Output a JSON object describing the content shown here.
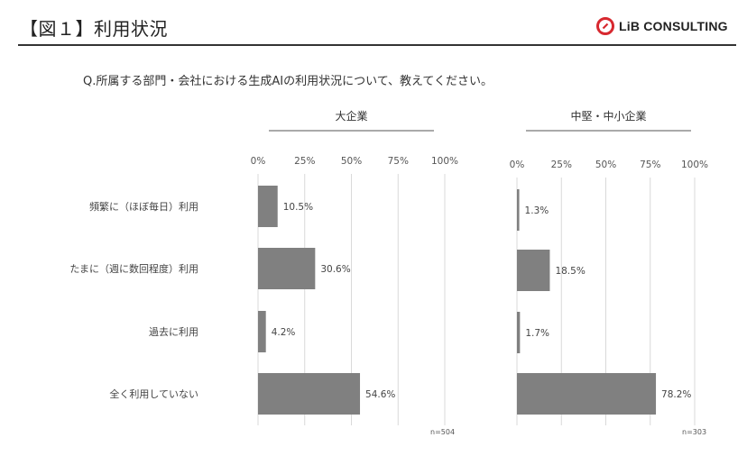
{
  "header": {
    "title": "【図１】利用状況",
    "logo_text": "LiB CONSULTING",
    "accent_color": "#d7282f"
  },
  "question": "Q.所属する部門・会社における生成AIの利用状況について、教えてください。",
  "chart_data": {
    "type": "bar",
    "orientation": "horizontal",
    "categories": [
      "頻繁に（ほぼ毎日）利用",
      "たまに（週に数回程度）利用",
      "過去に利用",
      "全く利用していない"
    ],
    "bar_color": "#808080",
    "panels": [
      {
        "title": "大企業",
        "values": [
          10.5,
          30.6,
          4.2,
          54.6
        ],
        "labels": [
          "10.5%",
          "30.6%",
          "4.2%",
          "54.6%"
        ],
        "note": "n=504",
        "xlim": [
          0,
          100
        ],
        "ticks": [
          0,
          25,
          50,
          75,
          100
        ],
        "tick_labels": [
          "0%",
          "25%",
          "50%",
          "75%",
          "100%"
        ]
      },
      {
        "title": "中堅・中小企業",
        "values": [
          1.3,
          18.5,
          1.7,
          78.2
        ],
        "labels": [
          "1.3%",
          "18.5%",
          "1.7%",
          "78.2%"
        ],
        "note": "n=303",
        "xlim": [
          0,
          100
        ],
        "ticks": [
          0,
          25,
          50,
          75,
          100
        ],
        "tick_labels": [
          "0%",
          "25%",
          "50%",
          "75%",
          "100%"
        ]
      }
    ],
    "grid": true,
    "legend": "none"
  }
}
